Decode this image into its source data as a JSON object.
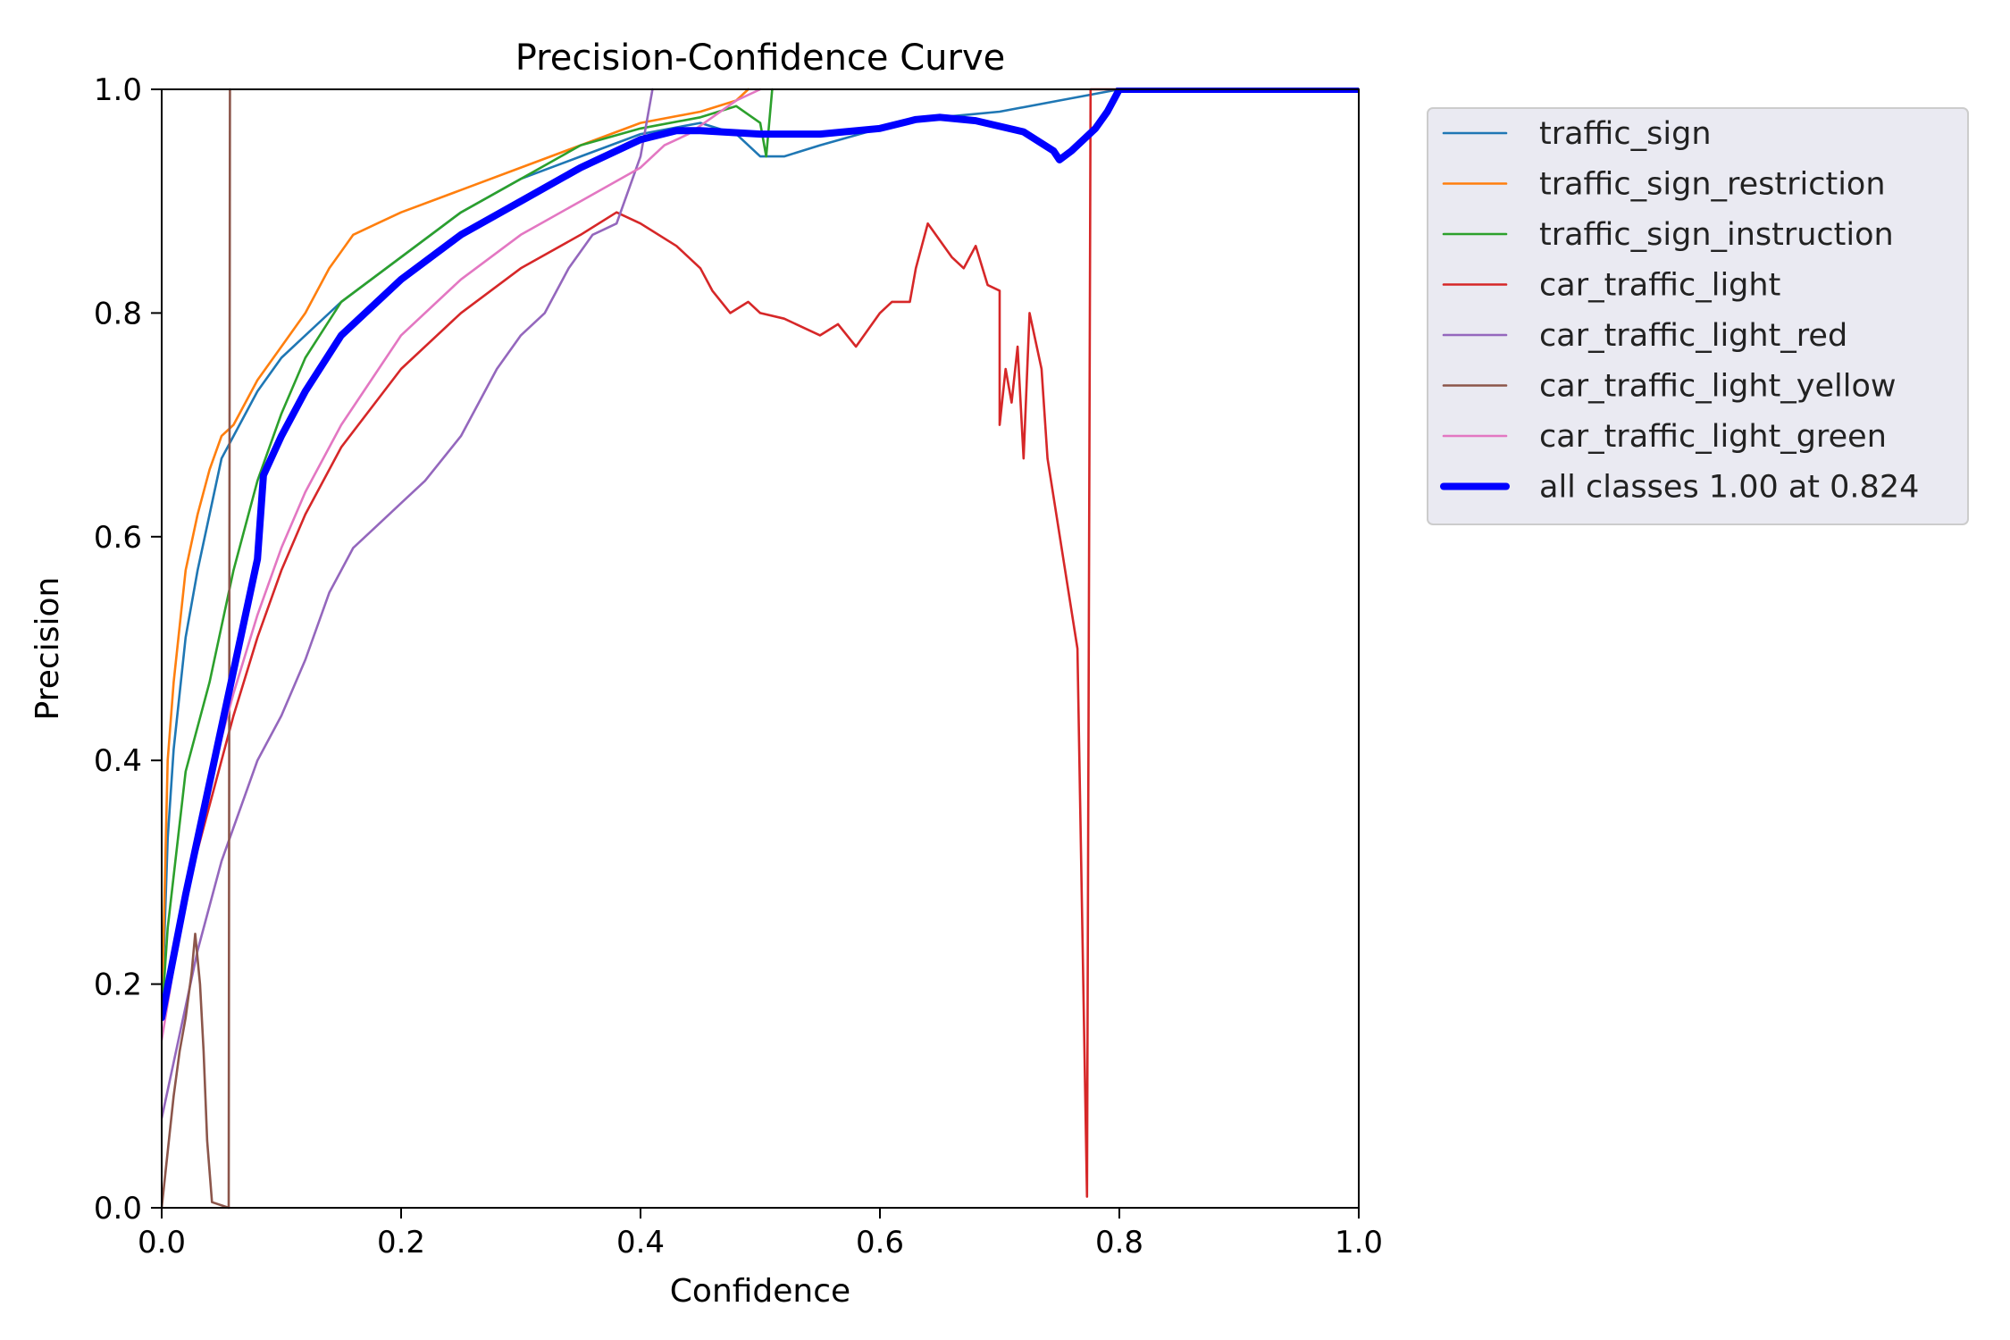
{
  "chart_data": {
    "type": "line",
    "title": "Precision-Confidence Curve",
    "xlabel": "Confidence",
    "ylabel": "Precision",
    "xlim": [
      0,
      1
    ],
    "ylim": [
      0,
      1
    ],
    "x_ticks": [
      "0.0",
      "0.2",
      "0.4",
      "0.6",
      "0.8",
      "1.0"
    ],
    "y_ticks": [
      "0.0",
      "0.2",
      "0.4",
      "0.6",
      "0.8",
      "1.0"
    ],
    "grid": false,
    "legend_position": "outside-right-top",
    "series": [
      {
        "name": "traffic_sign",
        "color": "#1f77b4",
        "points": [
          [
            0,
            0.17
          ],
          [
            0.005,
            0.33
          ],
          [
            0.01,
            0.41
          ],
          [
            0.02,
            0.51
          ],
          [
            0.03,
            0.57
          ],
          [
            0.04,
            0.62
          ],
          [
            0.05,
            0.67
          ],
          [
            0.06,
            0.69
          ],
          [
            0.08,
            0.73
          ],
          [
            0.1,
            0.76
          ],
          [
            0.12,
            0.78
          ],
          [
            0.15,
            0.81
          ],
          [
            0.2,
            0.85
          ],
          [
            0.25,
            0.89
          ],
          [
            0.3,
            0.92
          ],
          [
            0.35,
            0.94
          ],
          [
            0.4,
            0.96
          ],
          [
            0.45,
            0.97
          ],
          [
            0.48,
            0.96
          ],
          [
            0.5,
            0.94
          ],
          [
            0.52,
            0.94
          ],
          [
            0.55,
            0.95
          ],
          [
            0.6,
            0.965
          ],
          [
            0.65,
            0.975
          ],
          [
            0.7,
            0.98
          ],
          [
            0.75,
            0.99
          ],
          [
            0.8,
            1.0
          ],
          [
            1.0,
            1.0
          ]
        ]
      },
      {
        "name": "traffic_sign_restriction",
        "color": "#ff7f0e",
        "points": [
          [
            0,
            0.17
          ],
          [
            0.005,
            0.4
          ],
          [
            0.01,
            0.47
          ],
          [
            0.02,
            0.57
          ],
          [
            0.03,
            0.62
          ],
          [
            0.04,
            0.66
          ],
          [
            0.05,
            0.69
          ],
          [
            0.06,
            0.7
          ],
          [
            0.08,
            0.74
          ],
          [
            0.1,
            0.77
          ],
          [
            0.12,
            0.8
          ],
          [
            0.14,
            0.84
          ],
          [
            0.16,
            0.87
          ],
          [
            0.18,
            0.88
          ],
          [
            0.2,
            0.89
          ],
          [
            0.25,
            0.91
          ],
          [
            0.3,
            0.93
          ],
          [
            0.35,
            0.95
          ],
          [
            0.4,
            0.97
          ],
          [
            0.45,
            0.98
          ],
          [
            0.48,
            0.99
          ],
          [
            0.49,
            1.0
          ]
        ]
      },
      {
        "name": "traffic_sign_instruction",
        "color": "#2ca02c",
        "points": [
          [
            0,
            0.17
          ],
          [
            0.005,
            0.25
          ],
          [
            0.02,
            0.39
          ],
          [
            0.04,
            0.47
          ],
          [
            0.06,
            0.57
          ],
          [
            0.08,
            0.65
          ],
          [
            0.1,
            0.71
          ],
          [
            0.12,
            0.76
          ],
          [
            0.15,
            0.81
          ],
          [
            0.2,
            0.85
          ],
          [
            0.25,
            0.89
          ],
          [
            0.3,
            0.92
          ],
          [
            0.35,
            0.95
          ],
          [
            0.4,
            0.965
          ],
          [
            0.45,
            0.975
          ],
          [
            0.48,
            0.985
          ],
          [
            0.5,
            0.97
          ],
          [
            0.505,
            0.94
          ],
          [
            0.51,
            1.0
          ]
        ]
      },
      {
        "name": "car_traffic_light",
        "color": "#d62728",
        "points": [
          [
            0,
            0.17
          ],
          [
            0.02,
            0.28
          ],
          [
            0.04,
            0.36
          ],
          [
            0.06,
            0.44
          ],
          [
            0.08,
            0.51
          ],
          [
            0.1,
            0.57
          ],
          [
            0.12,
            0.62
          ],
          [
            0.15,
            0.68
          ],
          [
            0.2,
            0.75
          ],
          [
            0.25,
            0.8
          ],
          [
            0.3,
            0.84
          ],
          [
            0.35,
            0.87
          ],
          [
            0.38,
            0.89
          ],
          [
            0.4,
            0.88
          ],
          [
            0.43,
            0.86
          ],
          [
            0.45,
            0.84
          ],
          [
            0.46,
            0.82
          ],
          [
            0.475,
            0.8
          ],
          [
            0.49,
            0.81
          ],
          [
            0.5,
            0.8
          ],
          [
            0.52,
            0.795
          ],
          [
            0.55,
            0.78
          ],
          [
            0.565,
            0.79
          ],
          [
            0.58,
            0.77
          ],
          [
            0.6,
            0.8
          ],
          [
            0.61,
            0.81
          ],
          [
            0.625,
            0.81
          ],
          [
            0.63,
            0.84
          ],
          [
            0.64,
            0.88
          ],
          [
            0.65,
            0.865
          ],
          [
            0.66,
            0.85
          ],
          [
            0.67,
            0.84
          ],
          [
            0.68,
            0.86
          ],
          [
            0.69,
            0.825
          ],
          [
            0.7,
            0.82
          ],
          [
            0.7,
            0.7
          ],
          [
            0.705,
            0.75
          ],
          [
            0.71,
            0.72
          ],
          [
            0.715,
            0.77
          ],
          [
            0.72,
            0.67
          ],
          [
            0.725,
            0.8
          ],
          [
            0.735,
            0.75
          ],
          [
            0.74,
            0.67
          ],
          [
            0.765,
            0.5
          ],
          [
            0.773,
            0.01
          ],
          [
            0.776,
            1.0
          ],
          [
            1.0,
            1.0
          ]
        ]
      },
      {
        "name": "car_traffic_light_red",
        "color": "#9467bd",
        "points": [
          [
            0,
            0.08
          ],
          [
            0.01,
            0.13
          ],
          [
            0.02,
            0.18
          ],
          [
            0.03,
            0.23
          ],
          [
            0.05,
            0.31
          ],
          [
            0.07,
            0.37
          ],
          [
            0.08,
            0.4
          ],
          [
            0.1,
            0.44
          ],
          [
            0.12,
            0.49
          ],
          [
            0.14,
            0.55
          ],
          [
            0.16,
            0.59
          ],
          [
            0.18,
            0.61
          ],
          [
            0.2,
            0.63
          ],
          [
            0.22,
            0.65
          ],
          [
            0.25,
            0.69
          ],
          [
            0.28,
            0.75
          ],
          [
            0.3,
            0.78
          ],
          [
            0.32,
            0.8
          ],
          [
            0.34,
            0.84
          ],
          [
            0.36,
            0.87
          ],
          [
            0.38,
            0.88
          ],
          [
            0.39,
            0.91
          ],
          [
            0.4,
            0.94
          ],
          [
            0.405,
            0.97
          ],
          [
            0.41,
            1.0
          ]
        ]
      },
      {
        "name": "car_traffic_light_yellow",
        "color": "#8c564b",
        "points": [
          [
            0,
            0.0
          ],
          [
            0.005,
            0.05
          ],
          [
            0.01,
            0.1
          ],
          [
            0.015,
            0.14
          ],
          [
            0.02,
            0.17
          ],
          [
            0.025,
            0.21
          ],
          [
            0.028,
            0.245
          ],
          [
            0.032,
            0.2
          ],
          [
            0.035,
            0.14
          ],
          [
            0.038,
            0.06
          ],
          [
            0.042,
            0.005
          ],
          [
            0.056,
            0.0
          ],
          [
            0.057,
            1.0
          ]
        ]
      },
      {
        "name": "car_traffic_light_green",
        "color": "#e377c2",
        "points": [
          [
            0,
            0.15
          ],
          [
            0.02,
            0.28
          ],
          [
            0.04,
            0.38
          ],
          [
            0.06,
            0.46
          ],
          [
            0.08,
            0.53
          ],
          [
            0.1,
            0.59
          ],
          [
            0.12,
            0.64
          ],
          [
            0.15,
            0.7
          ],
          [
            0.2,
            0.78
          ],
          [
            0.25,
            0.83
          ],
          [
            0.3,
            0.87
          ],
          [
            0.35,
            0.9
          ],
          [
            0.4,
            0.93
          ],
          [
            0.42,
            0.95
          ],
          [
            0.44,
            0.96
          ],
          [
            0.46,
            0.975
          ],
          [
            0.48,
            0.99
          ],
          [
            0.5,
            1.0
          ]
        ]
      },
      {
        "name": "all classes 1.00 at 0.824",
        "color": "#0000ff",
        "points": [
          [
            0,
            0.17
          ],
          [
            0.02,
            0.28
          ],
          [
            0.04,
            0.38
          ],
          [
            0.06,
            0.48
          ],
          [
            0.08,
            0.58
          ],
          [
            0.085,
            0.655
          ],
          [
            0.1,
            0.69
          ],
          [
            0.12,
            0.73
          ],
          [
            0.15,
            0.78
          ],
          [
            0.2,
            0.83
          ],
          [
            0.25,
            0.87
          ],
          [
            0.3,
            0.9
          ],
          [
            0.35,
            0.93
          ],
          [
            0.4,
            0.955
          ],
          [
            0.43,
            0.963
          ],
          [
            0.45,
            0.963
          ],
          [
            0.5,
            0.96
          ],
          [
            0.55,
            0.96
          ],
          [
            0.6,
            0.965
          ],
          [
            0.63,
            0.973
          ],
          [
            0.65,
            0.975
          ],
          [
            0.68,
            0.972
          ],
          [
            0.72,
            0.962
          ],
          [
            0.745,
            0.945
          ],
          [
            0.75,
            0.937
          ],
          [
            0.76,
            0.945
          ],
          [
            0.78,
            0.965
          ],
          [
            0.79,
            0.98
          ],
          [
            0.8,
            1.0
          ],
          [
            0.824,
            1.0
          ],
          [
            1.0,
            1.0
          ]
        ]
      }
    ]
  }
}
